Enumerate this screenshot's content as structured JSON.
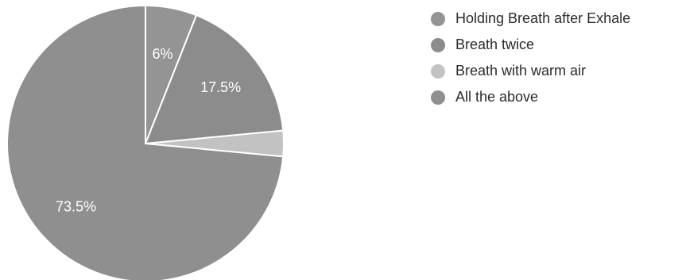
{
  "chart_data": {
    "type": "pie",
    "categories": [
      "Holding Breath after Exhale",
      "Breath twice",
      "Breath with warm air",
      "All the above"
    ],
    "values": [
      6,
      17.5,
      3,
      73.5
    ],
    "data_labels": [
      "6%",
      "17.5%",
      "",
      "73.5%"
    ],
    "colors": [
      "#949494",
      "#8c8c8c",
      "#c2c2c2",
      "#8f8f8f"
    ],
    "legend": "right"
  }
}
